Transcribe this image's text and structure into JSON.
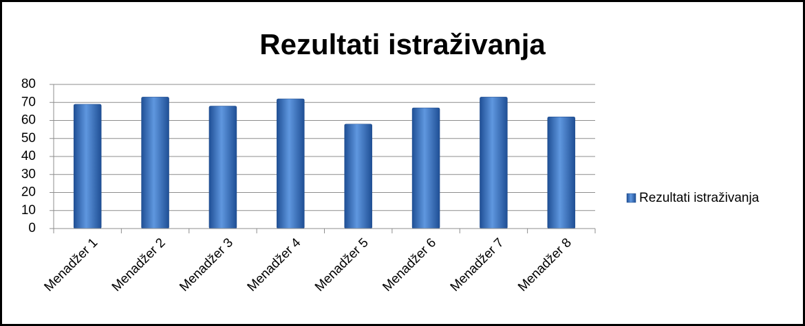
{
  "chart_data": {
    "type": "bar",
    "title": "Rezultati istraživanja",
    "categories": [
      "Menadžer 1",
      "Menadžer 2",
      "Menadžer 3",
      "Menadžer 4",
      "Menadžer 5",
      "Menadžer 6",
      "Menadžer 7",
      "Menadžer 8"
    ],
    "series": [
      {
        "name": "Rezultati istraživanja",
        "color": "#3a72c4",
        "values": [
          69,
          73,
          68,
          72,
          58,
          67,
          73,
          62
        ]
      }
    ],
    "ylim": [
      0,
      80
    ],
    "yticks": [
      0,
      10,
      20,
      30,
      40,
      50,
      60,
      70,
      80
    ],
    "grid": true,
    "legend": "right"
  }
}
